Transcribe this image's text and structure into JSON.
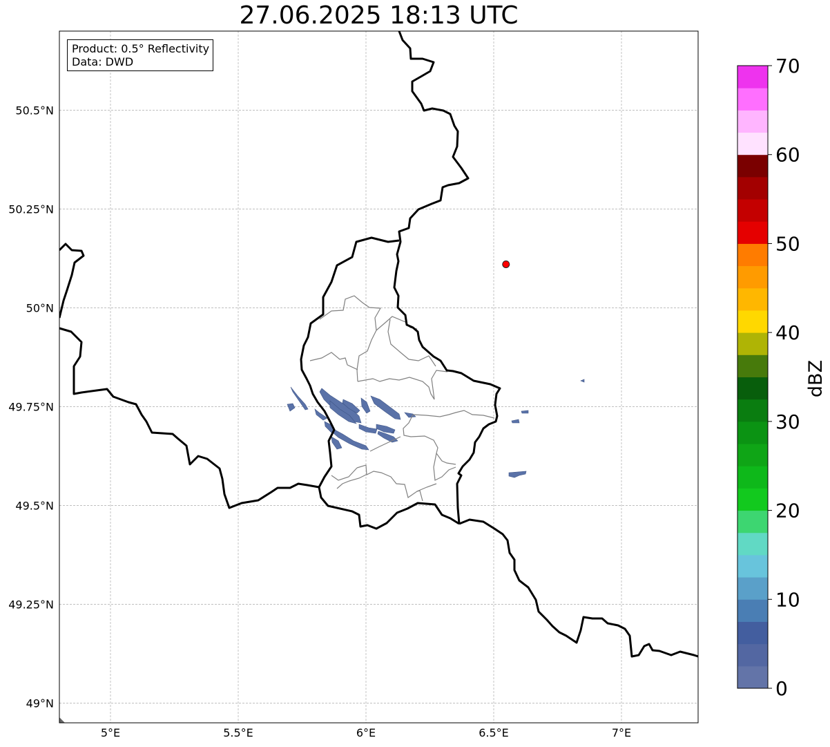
{
  "title": "27.06.2025 18:13 UTC",
  "info": {
    "product": "Product: 0.5° Reflectivity",
    "data": "Data: DWD"
  },
  "map": {
    "lon_range": [
      4.8,
      7.3
    ],
    "lat_range": [
      48.95,
      50.7
    ],
    "lon_ticks": [
      {
        "value": 5.0,
        "label": "5°E"
      },
      {
        "value": 5.5,
        "label": "5.5°E"
      },
      {
        "value": 6.0,
        "label": "6°E"
      },
      {
        "value": 6.5,
        "label": "6.5°E"
      },
      {
        "value": 7.0,
        "label": "7°E"
      }
    ],
    "lat_ticks": [
      {
        "value": 49.0,
        "label": "49°N"
      },
      {
        "value": 49.25,
        "label": "49.25°N"
      },
      {
        "value": 49.5,
        "label": "49.5°N"
      },
      {
        "value": 49.75,
        "label": "49.75°N"
      },
      {
        "value": 50.0,
        "label": "50°N"
      },
      {
        "value": 50.25,
        "label": "50.25°N"
      },
      {
        "value": 50.5,
        "label": "50.5°N"
      }
    ],
    "grid": true,
    "radar_site": {
      "lon": 6.548,
      "lat": 50.11,
      "color": "#ff0000"
    }
  },
  "colorbar": {
    "label": "dBZ",
    "range": [
      0,
      70
    ],
    "tick_labels": [
      "0",
      "10",
      "20",
      "30",
      "40",
      "50",
      "60",
      "70"
    ],
    "colors": [
      "#6374a8",
      "#5367a2",
      "#435e9f",
      "#4a7eb4",
      "#5aa0c9",
      "#68c4dc",
      "#61d9c4",
      "#3dd671",
      "#12c91e",
      "#0eb81a",
      "#0fa516",
      "#0b9313",
      "#0a7d10",
      "#085e0c",
      "#477a0b",
      "#afb405",
      "#ffd800",
      "#ffb700",
      "#ff9b00",
      "#ff7c00",
      "#e50000",
      "#c40000",
      "#a30000",
      "#7a0000",
      "#ffe2ff",
      "#ffb5ff",
      "#ff6fff",
      "#ee33ee"
    ]
  }
}
